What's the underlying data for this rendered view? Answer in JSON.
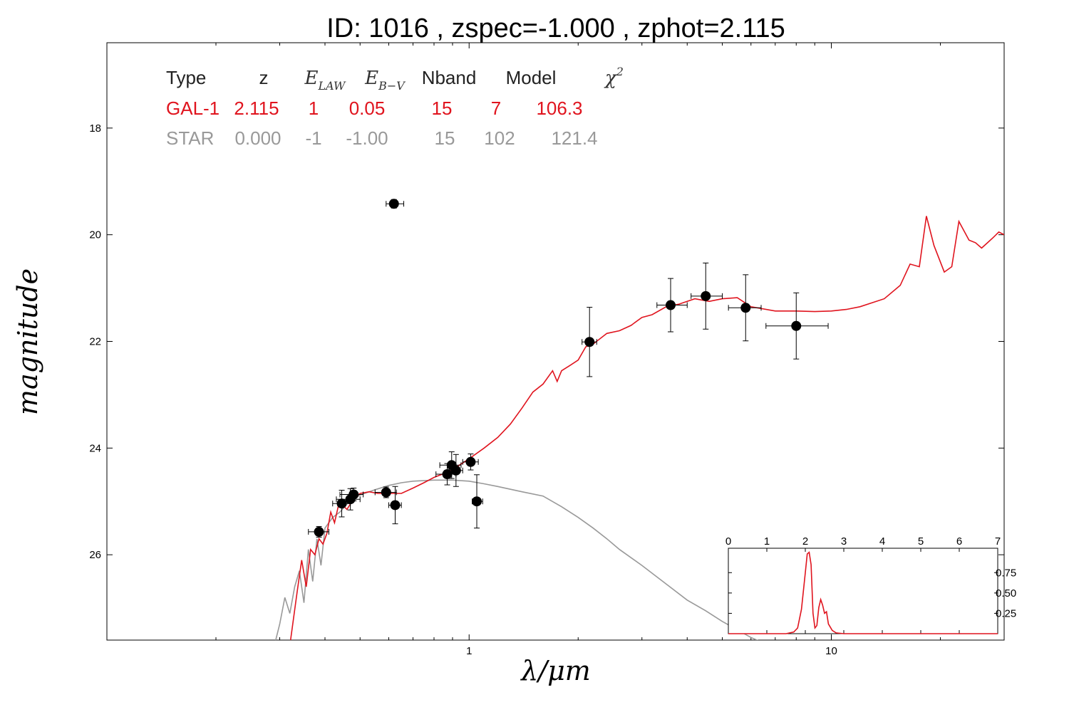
{
  "chart_data": {
    "type": "scatter",
    "title": "ID:  1016  , zspec=-1.000 , zphot=2.115",
    "xlabel": "λ/μm",
    "ylabel": "magnitude",
    "x_scale": "log",
    "xlim": [
      0.1,
      30
    ],
    "ylim": [
      27.6,
      16.4
    ],
    "x_tick_labels": [
      "1",
      "10"
    ],
    "x_ticks": [
      1,
      10
    ],
    "y_ticks": [
      18,
      20,
      22,
      24,
      26
    ],
    "y_tick_labels": [
      "18",
      "20",
      "22",
      "24",
      "26"
    ],
    "colors": {
      "galaxy": "#e0141e",
      "star": "#999999",
      "points": "#000000",
      "table_header": "#222222"
    },
    "table": {
      "headers": [
        "Type",
        "z",
        "E_LAW",
        "E_B-V",
        "Nband",
        "Model",
        "χ²"
      ],
      "rows": [
        {
          "color": "galaxy",
          "cells": [
            "GAL-1",
            "2.115",
            "1",
            "0.05",
            "15",
            "7",
            "106.3"
          ]
        },
        {
          "color": "star",
          "cells": [
            "STAR",
            "0.000",
            "-1",
            "-1.00",
            "15",
            "102",
            "121.4"
          ]
        }
      ]
    },
    "points": [
      {
        "x": 0.385,
        "y": 25.57,
        "xerr": [
          0.36,
          0.41
        ],
        "yerr": 0.1
      },
      {
        "x": 0.445,
        "y": 25.04,
        "xerr": [
          0.42,
          0.47
        ],
        "yerr": 0.25
      },
      {
        "x": 0.47,
        "y": 24.96,
        "xerr": [
          0.43,
          0.5
        ],
        "yerr": 0.2
      },
      {
        "x": 0.48,
        "y": 24.87,
        "xerr": [
          0.44,
          0.51
        ],
        "yerr": 0.12
      },
      {
        "x": 0.59,
        "y": 24.83,
        "xerr": [
          0.55,
          0.63
        ],
        "yerr": 0.1
      },
      {
        "x": 0.625,
        "y": 25.07,
        "xerr": [
          0.6,
          0.65
        ],
        "yerr": 0.35
      },
      {
        "x": 0.62,
        "y": 19.42,
        "xerr": [
          0.59,
          0.66
        ],
        "yerr": 0.08
      },
      {
        "x": 0.87,
        "y": 24.49,
        "xerr": [
          0.81,
          0.92
        ],
        "yerr": 0.2
      },
      {
        "x": 0.895,
        "y": 24.32,
        "xerr": [
          0.83,
          0.95
        ],
        "yerr": 0.25
      },
      {
        "x": 0.92,
        "y": 24.42,
        "xerr": [
          0.88,
          0.96
        ],
        "yerr": 0.3
      },
      {
        "x": 1.01,
        "y": 24.26,
        "xerr": [
          0.96,
          1.06
        ],
        "yerr": 0.15
      },
      {
        "x": 1.05,
        "y": 25.0,
        "xerr": [
          1.02,
          1.09
        ],
        "yerr": 0.5
      },
      {
        "x": 2.15,
        "y": 22.01,
        "xerr": [
          2.05,
          2.25
        ],
        "yerr": 0.65
      },
      {
        "x": 3.6,
        "y": 21.32,
        "xerr": [
          3.3,
          4.0
        ],
        "yerr": 0.5
      },
      {
        "x": 4.5,
        "y": 21.15,
        "xerr": [
          4.1,
          5.0
        ],
        "yerr": 0.62
      },
      {
        "x": 5.8,
        "y": 21.37,
        "xerr": [
          5.2,
          6.4
        ],
        "yerr": 0.62
      },
      {
        "x": 8.0,
        "y": 21.71,
        "xerr": [
          6.6,
          9.8
        ],
        "yerr": 0.62
      }
    ],
    "series": [
      {
        "name": "GAL-1",
        "color": "galaxy",
        "x": [
          0.32,
          0.335,
          0.345,
          0.355,
          0.365,
          0.375,
          0.385,
          0.395,
          0.405,
          0.415,
          0.425,
          0.435,
          0.445,
          0.46,
          0.48,
          0.5,
          0.53,
          0.56,
          0.6,
          0.65,
          0.7,
          0.75,
          0.8,
          0.85,
          0.9,
          0.95,
          1.0,
          1.1,
          1.2,
          1.3,
          1.4,
          1.5,
          1.6,
          1.7,
          1.75,
          1.8,
          1.9,
          2.0,
          2.1,
          2.2,
          2.4,
          2.6,
          2.8,
          3.0,
          3.2,
          3.5,
          3.8,
          4.2,
          4.6,
          5.0,
          5.5,
          6.0,
          7.0,
          8.0,
          9.0,
          10.0,
          11.0,
          12.0,
          14.0,
          15.5,
          16.5,
          17.5,
          18.3,
          19.2,
          20.5,
          21.5,
          22.5,
          24.0,
          25.0,
          26.0,
          27.0,
          28.0,
          29.0,
          30.0
        ],
        "y": [
          27.7,
          26.7,
          26.1,
          26.6,
          25.9,
          26.0,
          25.7,
          25.8,
          25.6,
          25.2,
          25.4,
          25.1,
          25.05,
          25.15,
          24.95,
          24.85,
          24.82,
          24.85,
          24.85,
          24.85,
          24.75,
          24.65,
          24.55,
          24.48,
          24.4,
          24.3,
          24.2,
          24.0,
          23.8,
          23.55,
          23.25,
          22.95,
          22.8,
          22.55,
          22.75,
          22.55,
          22.45,
          22.35,
          22.1,
          22.05,
          21.85,
          21.8,
          21.7,
          21.55,
          21.5,
          21.35,
          21.3,
          21.2,
          21.25,
          21.2,
          21.18,
          21.35,
          21.43,
          21.43,
          21.44,
          21.43,
          21.4,
          21.35,
          21.2,
          20.95,
          20.55,
          20.6,
          19.65,
          20.2,
          20.7,
          20.6,
          19.75,
          20.1,
          20.15,
          20.25,
          20.15,
          20.05,
          19.95,
          20.0
        ]
      },
      {
        "name": "STAR",
        "color": "star",
        "x": [
          0.29,
          0.3,
          0.31,
          0.32,
          0.33,
          0.34,
          0.35,
          0.36,
          0.37,
          0.38,
          0.39,
          0.4,
          0.42,
          0.44,
          0.46,
          0.48,
          0.5,
          0.55,
          0.6,
          0.65,
          0.7,
          0.8,
          0.9,
          1.0,
          1.1,
          1.2,
          1.4,
          1.6,
          1.8,
          2.0,
          2.2,
          2.4,
          2.6,
          3.0,
          3.5,
          4.0,
          4.5,
          5.0,
          6.0,
          7.0
        ],
        "y": [
          27.7,
          27.3,
          26.8,
          27.1,
          26.6,
          26.3,
          26.9,
          25.9,
          26.5,
          25.7,
          26.2,
          25.5,
          25.3,
          25.2,
          25.05,
          24.95,
          24.88,
          24.78,
          24.7,
          24.65,
          24.62,
          24.6,
          24.6,
          24.62,
          24.67,
          24.72,
          24.82,
          24.9,
          25.1,
          25.3,
          25.5,
          25.7,
          25.9,
          26.2,
          26.55,
          26.85,
          27.05,
          27.25,
          27.55,
          27.75
        ]
      }
    ],
    "inset": {
      "type": "line",
      "xlim": [
        0,
        7
      ],
      "ylim": [
        0,
        1.05
      ],
      "x_ticks": [
        0,
        1,
        2,
        3,
        4,
        5,
        6,
        7
      ],
      "x_tick_labels": [
        "0",
        "1",
        "2",
        "3",
        "4",
        "5",
        "6",
        "7"
      ],
      "y_ticks": [
        0.25,
        0.5,
        0.75
      ],
      "y_tick_labels": [
        "0.25",
        "0.50",
        "0.75"
      ],
      "color": "galaxy",
      "x": [
        0.0,
        1.5,
        1.7,
        1.8,
        1.9,
        2.0,
        2.05,
        2.1,
        2.15,
        2.2,
        2.25,
        2.3,
        2.35,
        2.4,
        2.45,
        2.5,
        2.55,
        2.6,
        2.7,
        2.8,
        3.0,
        7.0
      ],
      "y": [
        0.0,
        0.0,
        0.02,
        0.07,
        0.3,
        0.75,
        0.98,
        1.0,
        0.85,
        0.25,
        0.07,
        0.1,
        0.32,
        0.42,
        0.35,
        0.25,
        0.27,
        0.12,
        0.04,
        0.01,
        0.0,
        0.0
      ]
    }
  }
}
